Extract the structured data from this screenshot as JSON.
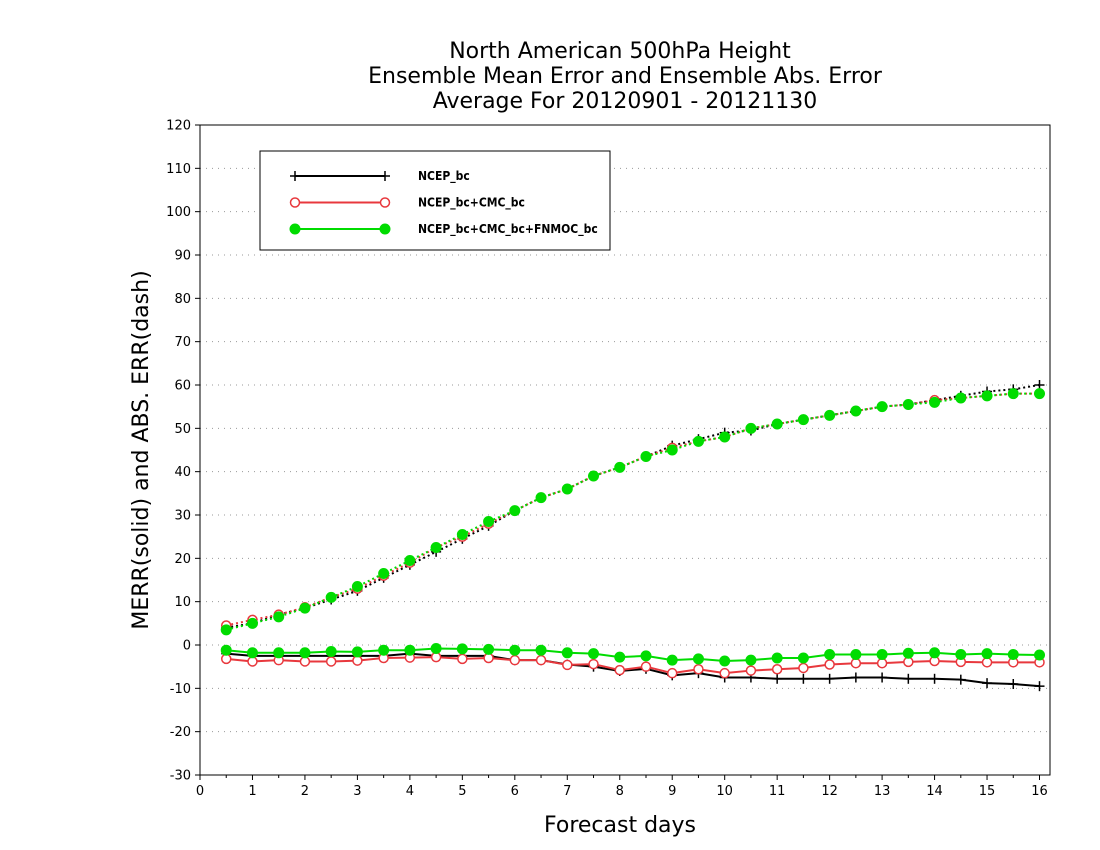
{
  "chart_data": {
    "type": "line",
    "title": [
      "North American 500hPa Height",
      "Ensemble Mean Error and Ensemble Abs. Error",
      "Average For 20120901 - 20121130"
    ],
    "xlabel": "Forecast days",
    "ylabel": "MERR(solid) and ABS. ERR(dash)",
    "xlim": [
      0,
      16.2
    ],
    "ylim": [
      -30,
      120
    ],
    "xticks": [
      0,
      1,
      2,
      3,
      4,
      5,
      6,
      7,
      8,
      9,
      10,
      11,
      12,
      13,
      14,
      15,
      16
    ],
    "yticks": [
      -30,
      -20,
      -10,
      0,
      10,
      20,
      30,
      40,
      50,
      60,
      70,
      80,
      90,
      100,
      110,
      120
    ],
    "grid": "horizontal-dotted",
    "legend_position": "top-left",
    "x": [
      0.5,
      1,
      1.5,
      2,
      2.5,
      3,
      3.5,
      4,
      4.5,
      5,
      5.5,
      6,
      6.5,
      7,
      7.5,
      8,
      8.5,
      9,
      9.5,
      10,
      10.5,
      11,
      11.5,
      12,
      12.5,
      13,
      13.5,
      14,
      14.5,
      15,
      15.5,
      16
    ],
    "series": [
      {
        "name": "NCEP_bc",
        "color": "#000000",
        "marker": "plus",
        "merr": [
          -2,
          -2.5,
          -2.5,
          -2.5,
          -2.5,
          -2.5,
          -2.5,
          -2,
          -2.5,
          -2.5,
          -2.5,
          -3.5,
          -3.5,
          -4.5,
          -5,
          -6,
          -5.5,
          -7,
          -6.5,
          -7.5,
          -7.5,
          -7.8,
          -7.8,
          -7.8,
          -7.5,
          -7.5,
          -7.8,
          -7.8,
          -8,
          -8.8,
          -9,
          -9.5
        ],
        "abs_err": [
          4,
          5,
          7,
          8.5,
          10.5,
          12.5,
          15.5,
          18.5,
          21.5,
          24.5,
          27.5,
          31,
          34,
          36,
          39,
          41,
          43.5,
          46,
          47.5,
          49,
          49.5,
          51,
          52,
          53,
          54,
          55,
          55.5,
          56.5,
          57.5,
          58.5,
          59,
          60
        ]
      },
      {
        "name": "NCEP_bc+CMC_bc",
        "color": "#e8383d",
        "marker": "open-circle",
        "merr": [
          -3.2,
          -3.8,
          -3.5,
          -3.8,
          -3.8,
          -3.6,
          -3,
          -2.9,
          -2.8,
          -3.2,
          -3,
          -3.5,
          -3.5,
          -4.6,
          -4.4,
          -5.8,
          -5,
          -6.5,
          -5.6,
          -6.5,
          -5.9,
          -5.6,
          -5.3,
          -4.5,
          -4.2,
          -4.2,
          -3.9,
          -3.7,
          -3.9,
          -4,
          -4,
          -4
        ],
        "abs_err": [
          4.5,
          5.8,
          7,
          8.7,
          11,
          13,
          16,
          19,
          22.5,
          25,
          28,
          31,
          34,
          36,
          39,
          41,
          43.5,
          45.5,
          47,
          48,
          50,
          51,
          52,
          53,
          54,
          55,
          55.5,
          56.5,
          57,
          57.5,
          58,
          58
        ]
      },
      {
        "name": "NCEP_bc+CMC_bc+FNMOC_bc",
        "color": "#00dc00",
        "marker": "filled-circle",
        "merr": [
          -1.2,
          -1.8,
          -1.8,
          -1.8,
          -1.5,
          -1.6,
          -1.2,
          -1.2,
          -0.8,
          -0.9,
          -1,
          -1.2,
          -1.2,
          -1.8,
          -2,
          -2.8,
          -2.5,
          -3.5,
          -3.2,
          -3.7,
          -3.5,
          -3,
          -3,
          -2.2,
          -2.2,
          -2.2,
          -1.9,
          -1.8,
          -2.2,
          -2,
          -2.2,
          -2.3
        ],
        "abs_err": [
          3.5,
          5,
          6.5,
          8.5,
          11,
          13.5,
          16.5,
          19.5,
          22.5,
          25.5,
          28.5,
          31,
          34,
          36,
          39,
          41,
          43.5,
          45,
          47,
          48,
          50,
          51,
          52,
          53,
          54,
          55,
          55.5,
          56,
          57,
          57.5,
          58,
          58
        ]
      }
    ]
  }
}
